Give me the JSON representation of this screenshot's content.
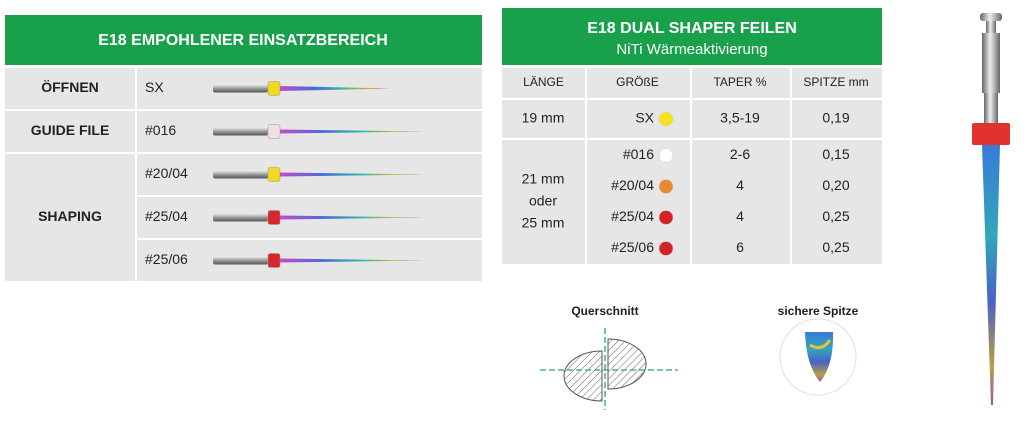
{
  "usage_table": {
    "title": "E18 EMPOHLENER EINSATZBEREICH",
    "groups": [
      {
        "label": "ÖFFNEN",
        "files": [
          {
            "size": "SX",
            "color": "#f3d820"
          }
        ]
      },
      {
        "label": "GUIDE FILE",
        "files": [
          {
            "size": "#016",
            "color": "#f2dfe6"
          }
        ]
      },
      {
        "label": "SHAPING",
        "files": [
          {
            "size": "#20/04",
            "color": "#f3d820"
          },
          {
            "size": "#25/04",
            "color": "#d8262b"
          },
          {
            "size": "#25/06",
            "color": "#d8262b"
          }
        ]
      }
    ]
  },
  "spec_table": {
    "title": "E18 DUAL SHAPER FEILEN",
    "subtitle": "NiTi Wärmeaktivierung",
    "headers": [
      "LÄNGE",
      "GRÖßE",
      "TAPER %",
      "SPITZE mm"
    ],
    "groups": [
      {
        "length": [
          "19 mm"
        ],
        "rows": [
          {
            "size": "SX",
            "dot": "#f7e21c",
            "taper": "3,5-19",
            "tip": "0,19"
          }
        ]
      },
      {
        "length": [
          "21 mm",
          "oder",
          "25 mm"
        ],
        "rows": [
          {
            "size": "#016",
            "dot": "#ffffff",
            "taper": "2-6",
            "tip": "0,15"
          },
          {
            "size": "#20/04",
            "dot": "#e88a2c",
            "taper": "4",
            "tip": "0,20"
          },
          {
            "size": "#25/04",
            "dot": "#d62027",
            "taper": "4",
            "tip": "0,25"
          },
          {
            "size": "#25/06",
            "dot": "#d62027",
            "taper": "6",
            "tip": "0,25"
          }
        ]
      }
    ]
  },
  "diagrams": {
    "cross_section": "Querschnitt",
    "safe_tip": "sichere Spitze"
  }
}
